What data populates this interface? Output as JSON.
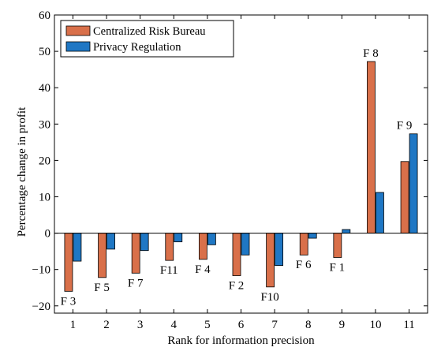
{
  "chart_data": {
    "type": "bar",
    "title": "",
    "xlabel": "Rank for information precision",
    "ylabel": "Percentage change in profit",
    "categories": [
      "1",
      "2",
      "3",
      "4",
      "5",
      "6",
      "7",
      "8",
      "9",
      "10",
      "11"
    ],
    "y_ticks": [
      "−20",
      "−10",
      "0",
      "10",
      "20",
      "30",
      "40",
      "50",
      "60"
    ],
    "ylim": [
      -22,
      60
    ],
    "grid": false,
    "legend_position": "top-left",
    "series": [
      {
        "name": "Centralized Risk Bureau",
        "color": "#d9704a",
        "values": [
          -16.0,
          -12.2,
          -11.0,
          -7.5,
          -7.2,
          -11.7,
          -14.8,
          -6.0,
          -6.7,
          47.2,
          19.7
        ]
      },
      {
        "name": "Privacy Regulation",
        "color": "#1f77c4",
        "values": [
          -7.7,
          -4.4,
          -4.8,
          -2.4,
          -3.2,
          -6.0,
          -8.9,
          -1.4,
          1.0,
          11.2,
          27.3
        ]
      }
    ],
    "bar_labels": [
      "F 3",
      "F 5",
      "F 7",
      "F11",
      "F 4",
      "F 2",
      "F10",
      "F 6",
      "F 1",
      "F 8",
      "F 9"
    ]
  }
}
